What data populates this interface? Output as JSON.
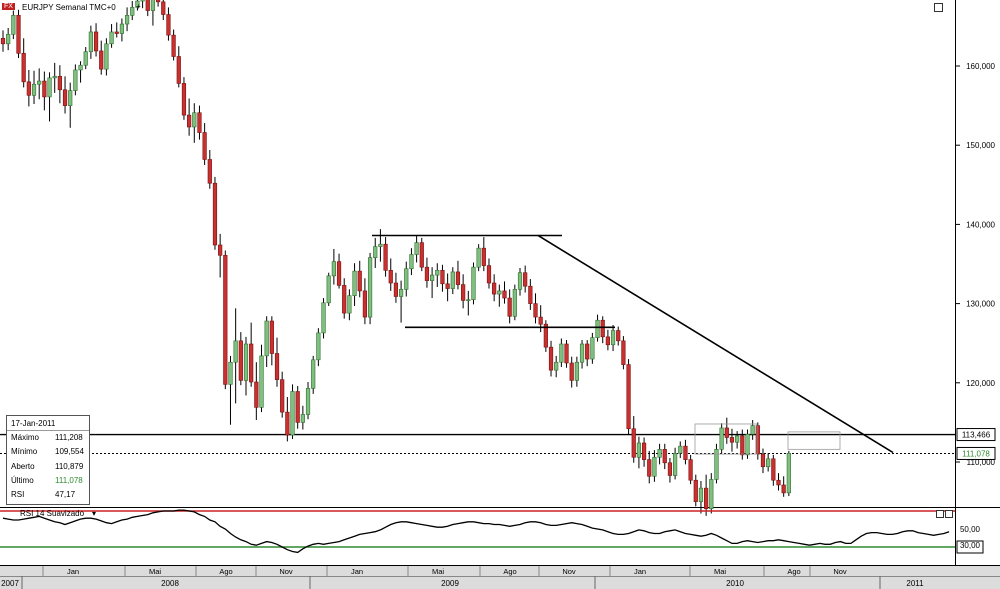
{
  "header": {
    "symbol_icon": "FX",
    "title": "EURJPY Semanal TMC+0",
    "plus": "+"
  },
  "colors": {
    "up": "#7fbf7f",
    "down": "#c93030",
    "upEdge": "#2e6e2e",
    "downEdge": "#7a1010",
    "last": "#2e8b2e",
    "rsiTop": "#cc2222",
    "rsiBottom": "#2e8b2e",
    "trend": "#000000"
  },
  "chart_data": {
    "type": "candlestick",
    "ylim": [
      100,
      170
    ],
    "y_ticks": [
      "160,000",
      "150,000",
      "140,000",
      "130,000",
      "120,000",
      "110,000"
    ],
    "price_tags": [
      "113,466",
      "111,078"
    ],
    "horizontal_level": 113.466,
    "last_price": 111.078,
    "x_months": [
      "Jan",
      "Mai",
      "Ago",
      "Nov",
      "Jan",
      "Mai",
      "Ago",
      "Nov",
      "Jan",
      "Mai",
      "Ago",
      "Nov"
    ],
    "x_years": [
      "2007",
      "2008",
      "2009",
      "2010",
      "2011"
    ],
    "candles": [
      {
        "o": 163.5,
        "h": 164.5,
        "l": 161.8,
        "c": 162.8
      },
      {
        "o": 162.8,
        "h": 164.8,
        "l": 162.0,
        "c": 164.0
      },
      {
        "o": 164.0,
        "h": 167.0,
        "l": 163.4,
        "c": 166.4
      },
      {
        "o": 166.4,
        "h": 167.1,
        "l": 161.0,
        "c": 161.6
      },
      {
        "o": 161.6,
        "h": 163.5,
        "l": 157.3,
        "c": 158.0
      },
      {
        "o": 158.0,
        "h": 159.5,
        "l": 154.9,
        "c": 156.3
      },
      {
        "o": 156.3,
        "h": 159.4,
        "l": 155.2,
        "c": 157.7
      },
      {
        "o": 157.7,
        "h": 159.7,
        "l": 155.8,
        "c": 158.1
      },
      {
        "o": 158.1,
        "h": 159.3,
        "l": 154.4,
        "c": 156.1
      },
      {
        "o": 156.1,
        "h": 159.2,
        "l": 153.0,
        "c": 158.5
      },
      {
        "o": 158.5,
        "h": 160.4,
        "l": 156.6,
        "c": 158.7
      },
      {
        "o": 158.7,
        "h": 160.1,
        "l": 155.3,
        "c": 157.0
      },
      {
        "o": 157.0,
        "h": 158.7,
        "l": 154.0,
        "c": 155.0
      },
      {
        "o": 155.0,
        "h": 157.9,
        "l": 152.2,
        "c": 156.9
      },
      {
        "o": 156.9,
        "h": 160.2,
        "l": 156.3,
        "c": 159.5
      },
      {
        "o": 159.5,
        "h": 160.6,
        "l": 157.9,
        "c": 160.1
      },
      {
        "o": 160.1,
        "h": 162.4,
        "l": 159.6,
        "c": 161.8
      },
      {
        "o": 161.8,
        "h": 165.1,
        "l": 160.9,
        "c": 164.3
      },
      {
        "o": 164.3,
        "h": 165.4,
        "l": 161.2,
        "c": 161.9
      },
      {
        "o": 161.9,
        "h": 163.2,
        "l": 158.9,
        "c": 159.6
      },
      {
        "o": 159.6,
        "h": 163.5,
        "l": 158.8,
        "c": 162.8
      },
      {
        "o": 162.8,
        "h": 165.3,
        "l": 162.3,
        "c": 164.3
      },
      {
        "o": 164.3,
        "h": 165.5,
        "l": 163.6,
        "c": 164.1
      },
      {
        "o": 164.1,
        "h": 166.0,
        "l": 163.1,
        "c": 165.3
      },
      {
        "o": 165.3,
        "h": 167.4,
        "l": 164.4,
        "c": 166.4
      },
      {
        "o": 166.4,
        "h": 168.2,
        "l": 165.8,
        "c": 167.4
      },
      {
        "o": 167.4,
        "h": 169.4,
        "l": 167.0,
        "c": 168.2
      },
      {
        "o": 168.2,
        "h": 169.4,
        "l": 167.3,
        "c": 168.6
      },
      {
        "o": 168.6,
        "h": 169.8,
        "l": 166.3,
        "c": 167.0
      },
      {
        "o": 167.0,
        "h": 169.0,
        "l": 165.1,
        "c": 168.4
      },
      {
        "o": 168.4,
        "h": 169.5,
        "l": 167.5,
        "c": 168.1
      },
      {
        "o": 168.1,
        "h": 168.8,
        "l": 165.8,
        "c": 166.5
      },
      {
        "o": 166.5,
        "h": 167.4,
        "l": 163.2,
        "c": 163.9
      },
      {
        "o": 163.9,
        "h": 164.6,
        "l": 160.7,
        "c": 161.2
      },
      {
        "o": 161.2,
        "h": 162.5,
        "l": 157.3,
        "c": 157.8
      },
      {
        "o": 157.8,
        "h": 158.6,
        "l": 153.2,
        "c": 153.8
      },
      {
        "o": 153.8,
        "h": 155.9,
        "l": 151.2,
        "c": 152.3
      },
      {
        "o": 152.3,
        "h": 155.3,
        "l": 150.3,
        "c": 154.1
      },
      {
        "o": 154.1,
        "h": 155.0,
        "l": 150.7,
        "c": 151.6
      },
      {
        "o": 151.6,
        "h": 152.8,
        "l": 147.5,
        "c": 148.2
      },
      {
        "o": 148.2,
        "h": 149.4,
        "l": 144.5,
        "c": 145.2
      },
      {
        "o": 145.2,
        "h": 146.0,
        "l": 136.8,
        "c": 137.4
      },
      {
        "o": 137.4,
        "h": 138.8,
        "l": 133.3,
        "c": 136.1
      },
      {
        "o": 136.1,
        "h": 136.7,
        "l": 119.2,
        "c": 119.8
      },
      {
        "o": 119.8,
        "h": 123.4,
        "l": 114.7,
        "c": 122.6
      },
      {
        "o": 122.6,
        "h": 129.4,
        "l": 117.4,
        "c": 125.3
      },
      {
        "o": 125.3,
        "h": 126.4,
        "l": 119.7,
        "c": 120.3
      },
      {
        "o": 120.3,
        "h": 125.8,
        "l": 118.4,
        "c": 124.9
      },
      {
        "o": 124.9,
        "h": 127.6,
        "l": 119.5,
        "c": 120.1
      },
      {
        "o": 120.1,
        "h": 122.6,
        "l": 115.3,
        "c": 116.9
      },
      {
        "o": 116.9,
        "h": 124.8,
        "l": 116.3,
        "c": 123.4
      },
      {
        "o": 123.4,
        "h": 128.4,
        "l": 122.0,
        "c": 127.8
      },
      {
        "o": 127.8,
        "h": 128.4,
        "l": 122.2,
        "c": 123.7
      },
      {
        "o": 123.7,
        "h": 125.7,
        "l": 119.5,
        "c": 120.4
      },
      {
        "o": 120.4,
        "h": 121.4,
        "l": 115.6,
        "c": 116.3
      },
      {
        "o": 116.3,
        "h": 118.2,
        "l": 112.6,
        "c": 113.4
      },
      {
        "o": 113.4,
        "h": 119.8,
        "l": 112.9,
        "c": 118.9
      },
      {
        "o": 118.9,
        "h": 119.6,
        "l": 114.2,
        "c": 115.0
      },
      {
        "o": 115.0,
        "h": 117.1,
        "l": 114.1,
        "c": 116.0
      },
      {
        "o": 116.0,
        "h": 120.1,
        "l": 115.4,
        "c": 119.3
      },
      {
        "o": 119.3,
        "h": 123.4,
        "l": 118.6,
        "c": 122.9
      },
      {
        "o": 122.9,
        "h": 126.9,
        "l": 122.1,
        "c": 126.3
      },
      {
        "o": 126.3,
        "h": 130.7,
        "l": 125.6,
        "c": 130.1
      },
      {
        "o": 130.1,
        "h": 133.9,
        "l": 129.7,
        "c": 133.5
      },
      {
        "o": 133.5,
        "h": 136.9,
        "l": 132.4,
        "c": 135.3
      },
      {
        "o": 135.3,
        "h": 136.3,
        "l": 131.9,
        "c": 132.3
      },
      {
        "o": 132.3,
        "h": 133.2,
        "l": 128.1,
        "c": 128.8
      },
      {
        "o": 128.8,
        "h": 131.8,
        "l": 127.9,
        "c": 131.0
      },
      {
        "o": 131.0,
        "h": 135.1,
        "l": 129.7,
        "c": 134.1
      },
      {
        "o": 134.1,
        "h": 135.4,
        "l": 130.8,
        "c": 131.6
      },
      {
        "o": 131.6,
        "h": 133.2,
        "l": 127.4,
        "c": 128.3
      },
      {
        "o": 128.3,
        "h": 136.4,
        "l": 127.4,
        "c": 135.8
      },
      {
        "o": 135.8,
        "h": 138.3,
        "l": 134.5,
        "c": 137.2
      },
      {
        "o": 137.2,
        "h": 139.4,
        "l": 135.3,
        "c": 137.5
      },
      {
        "o": 137.5,
        "h": 138.4,
        "l": 133.4,
        "c": 134.2
      },
      {
        "o": 134.2,
        "h": 135.7,
        "l": 131.6,
        "c": 132.6
      },
      {
        "o": 132.6,
        "h": 133.9,
        "l": 130.1,
        "c": 130.9
      },
      {
        "o": 130.9,
        "h": 132.9,
        "l": 127.6,
        "c": 131.8
      },
      {
        "o": 131.8,
        "h": 135.3,
        "l": 130.9,
        "c": 134.4
      },
      {
        "o": 134.4,
        "h": 137.0,
        "l": 133.6,
        "c": 136.2
      },
      {
        "o": 136.2,
        "h": 138.6,
        "l": 135.2,
        "c": 137.7
      },
      {
        "o": 137.7,
        "h": 138.3,
        "l": 134.1,
        "c": 134.6
      },
      {
        "o": 134.6,
        "h": 135.8,
        "l": 132.0,
        "c": 132.9
      },
      {
        "o": 132.9,
        "h": 134.6,
        "l": 130.7,
        "c": 133.6
      },
      {
        "o": 133.6,
        "h": 135.1,
        "l": 132.1,
        "c": 134.2
      },
      {
        "o": 134.2,
        "h": 134.9,
        "l": 131.5,
        "c": 132.5
      },
      {
        "o": 132.5,
        "h": 133.8,
        "l": 130.3,
        "c": 131.9
      },
      {
        "o": 131.9,
        "h": 134.6,
        "l": 131.2,
        "c": 134.0
      },
      {
        "o": 134.0,
        "h": 135.4,
        "l": 131.8,
        "c": 132.4
      },
      {
        "o": 132.4,
        "h": 133.7,
        "l": 129.4,
        "c": 130.4
      },
      {
        "o": 130.4,
        "h": 131.6,
        "l": 128.5,
        "c": 130.5
      },
      {
        "o": 130.5,
        "h": 135.2,
        "l": 129.9,
        "c": 134.6
      },
      {
        "o": 134.6,
        "h": 137.5,
        "l": 134.1,
        "c": 137.0
      },
      {
        "o": 137.0,
        "h": 138.4,
        "l": 134.1,
        "c": 134.8
      },
      {
        "o": 134.8,
        "h": 135.7,
        "l": 131.9,
        "c": 132.6
      },
      {
        "o": 132.6,
        "h": 133.7,
        "l": 130.3,
        "c": 131.2
      },
      {
        "o": 131.2,
        "h": 132.4,
        "l": 129.6,
        "c": 131.6
      },
      {
        "o": 131.6,
        "h": 132.8,
        "l": 130.0,
        "c": 130.7
      },
      {
        "o": 130.7,
        "h": 131.8,
        "l": 127.5,
        "c": 128.4
      },
      {
        "o": 128.4,
        "h": 132.4,
        "l": 127.9,
        "c": 131.8
      },
      {
        "o": 131.8,
        "h": 134.5,
        "l": 131.0,
        "c": 133.9
      },
      {
        "o": 133.9,
        "h": 134.8,
        "l": 131.4,
        "c": 132.2
      },
      {
        "o": 132.2,
        "h": 133.1,
        "l": 129.2,
        "c": 130.0
      },
      {
        "o": 130.0,
        "h": 131.3,
        "l": 127.5,
        "c": 128.3
      },
      {
        "o": 128.3,
        "h": 129.8,
        "l": 126.4,
        "c": 127.4
      },
      {
        "o": 127.4,
        "h": 127.9,
        "l": 123.9,
        "c": 124.5
      },
      {
        "o": 124.5,
        "h": 125.3,
        "l": 120.8,
        "c": 121.6
      },
      {
        "o": 121.6,
        "h": 123.4,
        "l": 120.7,
        "c": 122.6
      },
      {
        "o": 122.6,
        "h": 125.6,
        "l": 122.0,
        "c": 124.9
      },
      {
        "o": 124.9,
        "h": 125.4,
        "l": 121.9,
        "c": 122.5
      },
      {
        "o": 122.5,
        "h": 123.3,
        "l": 119.4,
        "c": 120.3
      },
      {
        "o": 120.3,
        "h": 123.3,
        "l": 119.5,
        "c": 122.6
      },
      {
        "o": 122.6,
        "h": 125.4,
        "l": 121.8,
        "c": 124.9
      },
      {
        "o": 124.9,
        "h": 125.4,
        "l": 122.1,
        "c": 123.0
      },
      {
        "o": 123.0,
        "h": 126.3,
        "l": 122.4,
        "c": 125.7
      },
      {
        "o": 125.7,
        "h": 128.6,
        "l": 125.2,
        "c": 127.9
      },
      {
        "o": 127.9,
        "h": 128.4,
        "l": 125.0,
        "c": 125.8
      },
      {
        "o": 125.8,
        "h": 126.7,
        "l": 124.1,
        "c": 124.8
      },
      {
        "o": 124.8,
        "h": 127.3,
        "l": 124.0,
        "c": 126.6
      },
      {
        "o": 126.6,
        "h": 127.1,
        "l": 124.7,
        "c": 125.3
      },
      {
        "o": 125.3,
        "h": 125.9,
        "l": 121.7,
        "c": 122.3
      },
      {
        "o": 122.3,
        "h": 123.0,
        "l": 113.4,
        "c": 114.2
      },
      {
        "o": 114.2,
        "h": 115.8,
        "l": 109.9,
        "c": 110.6
      },
      {
        "o": 110.6,
        "h": 113.2,
        "l": 109.2,
        "c": 112.4
      },
      {
        "o": 112.4,
        "h": 113.1,
        "l": 109.4,
        "c": 110.3
      },
      {
        "o": 110.3,
        "h": 111.4,
        "l": 107.3,
        "c": 108.2
      },
      {
        "o": 108.2,
        "h": 111.5,
        "l": 107.5,
        "c": 110.6
      },
      {
        "o": 110.6,
        "h": 112.3,
        "l": 109.7,
        "c": 111.6
      },
      {
        "o": 111.6,
        "h": 112.3,
        "l": 109.1,
        "c": 109.9
      },
      {
        "o": 109.9,
        "h": 110.5,
        "l": 107.4,
        "c": 108.3
      },
      {
        "o": 108.3,
        "h": 111.8,
        "l": 107.8,
        "c": 111.1
      },
      {
        "o": 111.1,
        "h": 112.6,
        "l": 110.5,
        "c": 112.0
      },
      {
        "o": 112.0,
        "h": 112.8,
        "l": 109.7,
        "c": 110.3
      },
      {
        "o": 110.3,
        "h": 110.9,
        "l": 107.2,
        "c": 107.7
      },
      {
        "o": 107.7,
        "h": 108.4,
        "l": 104.4,
        "c": 105.0
      },
      {
        "o": 105.0,
        "h": 107.6,
        "l": 103.5,
        "c": 106.7
      },
      {
        "o": 106.7,
        "h": 108.4,
        "l": 103.2,
        "c": 104.1
      },
      {
        "o": 104.1,
        "h": 108.6,
        "l": 103.5,
        "c": 107.8
      },
      {
        "o": 107.8,
        "h": 112.3,
        "l": 107.3,
        "c": 111.6
      },
      {
        "o": 111.6,
        "h": 114.9,
        "l": 111.1,
        "c": 114.3
      },
      {
        "o": 114.3,
        "h": 115.6,
        "l": 112.3,
        "c": 113.1
      },
      {
        "o": 113.1,
        "h": 114.2,
        "l": 111.3,
        "c": 112.5
      },
      {
        "o": 112.5,
        "h": 113.9,
        "l": 111.7,
        "c": 113.3
      },
      {
        "o": 113.3,
        "h": 114.1,
        "l": 110.3,
        "c": 110.9
      },
      {
        "o": 110.9,
        "h": 114.1,
        "l": 110.4,
        "c": 113.5
      },
      {
        "o": 113.5,
        "h": 115.3,
        "l": 112.8,
        "c": 114.6
      },
      {
        "o": 114.6,
        "h": 115.0,
        "l": 110.3,
        "c": 111.0
      },
      {
        "o": 111.0,
        "h": 111.7,
        "l": 108.6,
        "c": 109.4
      },
      {
        "o": 109.4,
        "h": 111.1,
        "l": 108.8,
        "c": 110.4
      },
      {
        "o": 110.4,
        "h": 110.9,
        "l": 107.0,
        "c": 107.7
      },
      {
        "o": 107.7,
        "h": 108.6,
        "l": 106.4,
        "c": 107.1
      },
      {
        "o": 107.1,
        "h": 108.2,
        "l": 105.6,
        "c": 106.1
      },
      {
        "o": 106.1,
        "h": 111.4,
        "l": 105.7,
        "c": 111.1
      }
    ]
  },
  "rsi": {
    "title": "RSI 14 Suavizado",
    "arrow": "▾",
    "levels": [
      "50,00",
      "30,00"
    ],
    "values": [
      62,
      61,
      60,
      60,
      61,
      62,
      63,
      64,
      62,
      60,
      58,
      57,
      55,
      57,
      59,
      61,
      62,
      62,
      61,
      59,
      57,
      56,
      58,
      60,
      61,
      63,
      64,
      65,
      66,
      68,
      69,
      70,
      70,
      70,
      71,
      71,
      70,
      69,
      66,
      64,
      60,
      58,
      53,
      50,
      45,
      41,
      38,
      36,
      33,
      32,
      34,
      36,
      35,
      33,
      30,
      27,
      25,
      24,
      28,
      31,
      33,
      34,
      33,
      34,
      35,
      36,
      38,
      40,
      42,
      44,
      45,
      46,
      47,
      49,
      52,
      55,
      57,
      58,
      58,
      57,
      56,
      55,
      54,
      53,
      52,
      52,
      53,
      55,
      56,
      57,
      58,
      58,
      57,
      56,
      56,
      55,
      55,
      54,
      53,
      54,
      55,
      57,
      58,
      58,
      57,
      55,
      54,
      54,
      55,
      56,
      57,
      56,
      55,
      53,
      51,
      50,
      49,
      47,
      45,
      44,
      44,
      45,
      47,
      49,
      48,
      46,
      45,
      45,
      47,
      48,
      49,
      47,
      45,
      44,
      43,
      42,
      43,
      45,
      43,
      40,
      37,
      34,
      34,
      36,
      37,
      36,
      35,
      36,
      37,
      37,
      38,
      37,
      36,
      35,
      34,
      33,
      32,
      33,
      34,
      33,
      33,
      35,
      36,
      34,
      34,
      38,
      42,
      45,
      46,
      46,
      45,
      44,
      44,
      45,
      47,
      48,
      48,
      46,
      45,
      44,
      43,
      44,
      45,
      47
    ]
  },
  "info": {
    "date": "17-Jan-2011",
    "rows": [
      {
        "label": "Máximo",
        "value": "111,208"
      },
      {
        "label": "Mínimo",
        "value": "109,554"
      },
      {
        "label": "Aberto",
        "value": "110,879"
      },
      {
        "label": "Último",
        "value": "111,078"
      },
      {
        "label": "RSI",
        "value": "47,17"
      }
    ]
  }
}
